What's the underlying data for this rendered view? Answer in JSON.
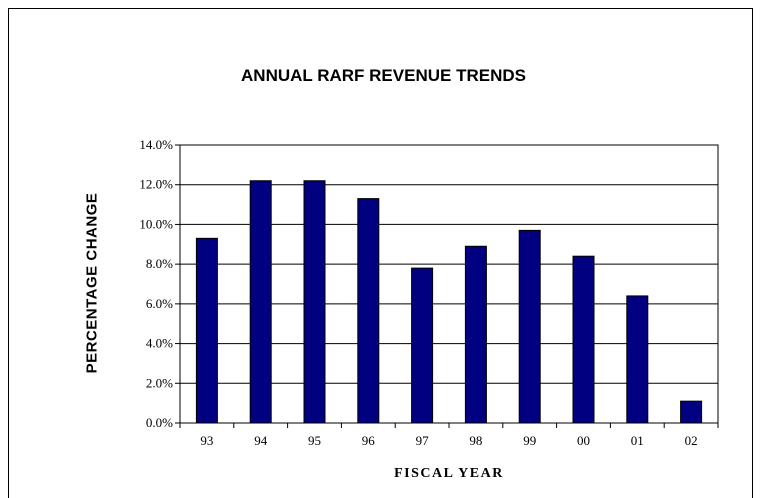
{
  "chart_data": {
    "type": "bar",
    "title": "ANNUAL RARF REVENUE TRENDS",
    "xlabel": "FISCAL YEAR",
    "ylabel": "PERCENTAGE CHANGE",
    "categories": [
      "93",
      "94",
      "95",
      "96",
      "97",
      "98",
      "99",
      "00",
      "01",
      "02"
    ],
    "values": [
      9.3,
      12.2,
      12.2,
      11.3,
      7.8,
      8.9,
      9.7,
      8.4,
      6.4,
      1.1
    ],
    "ylim": [
      0,
      14
    ],
    "yticks": [
      "0.0%",
      "2.0%",
      "4.0%",
      "6.0%",
      "8.0%",
      "10.0%",
      "12.0%",
      "14.0%"
    ],
    "grid": true,
    "bar_color": "#000080"
  }
}
